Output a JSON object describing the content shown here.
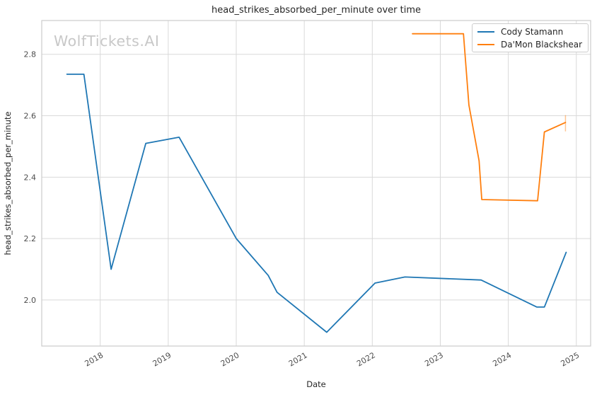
{
  "watermark": "WolfTickets.AI",
  "chart_data": {
    "type": "line",
    "title": "head_strikes_absorbed_per_minute over time",
    "xlabel": "Date",
    "ylabel": "head_strikes_absorbed_per_minute",
    "xlim": [
      2017.14,
      2025.21
    ],
    "ylim": [
      1.85,
      2.91
    ],
    "x_ticks": [
      2018,
      2019,
      2020,
      2021,
      2022,
      2023,
      2024,
      2025
    ],
    "y_ticks": [
      2.0,
      2.2,
      2.4,
      2.6,
      2.8
    ],
    "grid": true,
    "legend_position": "upper right",
    "colors": {
      "grid": "#d9d9d9",
      "spine": "#cccccc",
      "tick_text": "#4d4d4d",
      "text": "#262626"
    },
    "series": [
      {
        "name": "Cody Stamann",
        "color": "#1f77b4",
        "points": [
          [
            2017.51,
            2.735
          ],
          [
            2017.76,
            2.735
          ],
          [
            2018.16,
            2.1
          ],
          [
            2018.67,
            2.51
          ],
          [
            2019.16,
            2.53
          ],
          [
            2020.0,
            2.2
          ],
          [
            2020.47,
            2.08
          ],
          [
            2020.6,
            2.025
          ],
          [
            2021.33,
            1.895
          ],
          [
            2022.04,
            2.055
          ],
          [
            2022.48,
            2.075
          ],
          [
            2023.6,
            2.065
          ],
          [
            2024.42,
            1.977
          ],
          [
            2024.53,
            1.977
          ],
          [
            2024.85,
            2.155
          ]
        ]
      },
      {
        "name": "Da'Mon Blackshear",
        "color": "#ff7f0e",
        "points": [
          [
            2022.59,
            2.867
          ],
          [
            2023.34,
            2.867
          ],
          [
            2023.42,
            2.635
          ],
          [
            2023.57,
            2.453
          ],
          [
            2023.61,
            2.327
          ],
          [
            2024.43,
            2.323
          ],
          [
            2024.53,
            2.547
          ],
          [
            2024.84,
            2.578
          ]
        ],
        "end_tick": {
          "x": 2024.84,
          "y_low": 2.549,
          "y_high": 2.602
        }
      }
    ]
  }
}
